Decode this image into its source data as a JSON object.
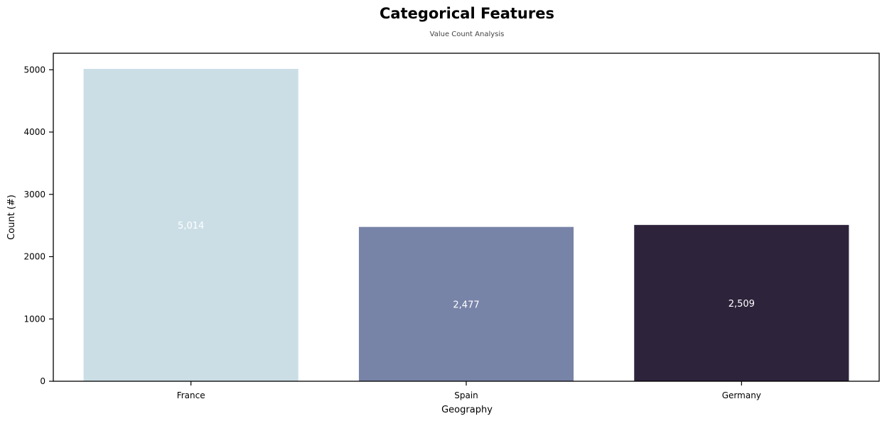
{
  "chart_data": {
    "type": "bar",
    "title": "Categorical Features",
    "subtitle": "Value Count Analysis",
    "xlabel": "Geography",
    "ylabel": "Count (#)",
    "categories": [
      "France",
      "Spain",
      "Germany"
    ],
    "values": [
      5014,
      2477,
      2509
    ],
    "value_labels": [
      "5,014",
      "2,477",
      "2,509"
    ],
    "colors": [
      "#cbdee6",
      "#7883a8",
      "#2d233b"
    ],
    "ylim": [
      0,
      5265
    ],
    "yticks": [
      0,
      1000,
      2000,
      3000,
      4000,
      5000
    ],
    "ytick_labels": [
      "0",
      "1000",
      "2000",
      "3000",
      "4000",
      "5000"
    ],
    "grid": false,
    "legend": "none"
  }
}
